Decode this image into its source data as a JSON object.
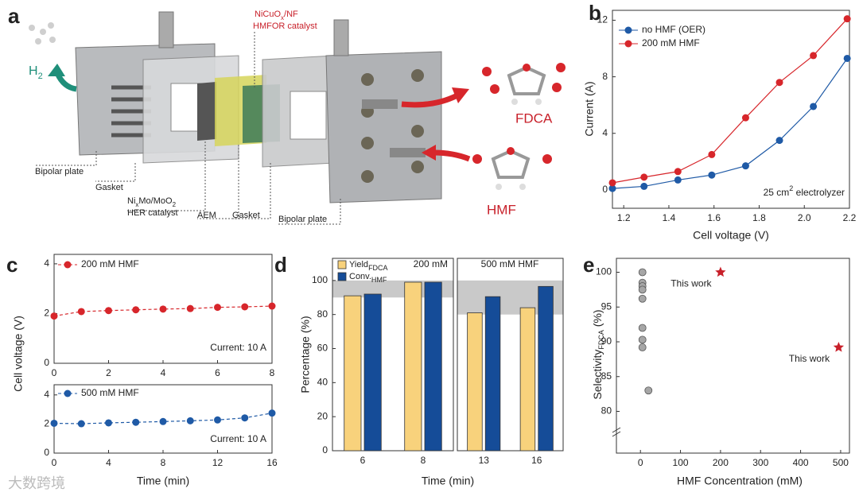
{
  "diagram": {
    "panel": "a",
    "h2": [
      {
        "text": "H"
      },
      {
        "text": "2",
        "sub": true
      }
    ],
    "anode_catalyst": {
      "line1": [
        {
          "text": "NiCuO"
        },
        {
          "text": "x",
          "sub": true
        },
        {
          "text": "/NF"
        }
      ],
      "line2": "HMFOR catalyst"
    },
    "her_catalyst": {
      "line1": [
        {
          "text": "Ni"
        },
        {
          "text": "x",
          "sub": true
        },
        {
          "text": "Mo/MoO"
        },
        {
          "text": "2",
          "sub": true
        }
      ],
      "line2": "HER catalyst"
    },
    "bipolar_plate_left": "Bipolar plate",
    "gasket_left": "Gasket",
    "aem": "AEM",
    "gasket_right": "Gasket",
    "bipolar_plate_right": "Bipolar plate",
    "product": "FDCA",
    "reactant": "HMF"
  },
  "watermark": "大数跨境",
  "chart_data": [
    {
      "type": "line",
      "panel": "b",
      "xlabel": "Cell voltage (V)",
      "ylabel": "Current (A)",
      "annotation": [
        {
          "text": "25 cm"
        },
        {
          "text": "2",
          "sup": true
        },
        {
          "text": " electrolyzer"
        }
      ],
      "xlim": [
        1.15,
        2.2
      ],
      "xticks": [
        1.2,
        1.4,
        1.6,
        1.8,
        {
          "value": 2,
          "label": "2.0"
        },
        2.2
      ],
      "ylim": [
        -1.3,
        12.7
      ],
      "yticks": [
        0,
        4,
        8,
        12
      ],
      "x": [
        1.15,
        1.29,
        1.44,
        1.59,
        1.74,
        1.89,
        2.04,
        2.19
      ],
      "series": [
        {
          "name": "no HMF (OER)",
          "color": "#1f5aa6",
          "values": [
            0.1,
            0.25,
            0.7,
            1.05,
            1.7,
            3.5,
            5.9,
            9.3
          ]
        },
        {
          "name": "200 mM HMF",
          "color": "#d7262b",
          "values": [
            0.5,
            0.9,
            1.3,
            2.5,
            5.1,
            7.6,
            9.5,
            12.1
          ]
        }
      ]
    },
    {
      "type": "line",
      "panel": "c",
      "ylabel": "Cell voltage (V)",
      "annotation": "Current: 10 A",
      "dashed": true,
      "xlim": [
        0,
        8
      ],
      "xticks": [
        0,
        2,
        4,
        6,
        8
      ],
      "ylim": [
        0,
        4.38
      ],
      "yticks": [
        0,
        2,
        4
      ],
      "x": [
        0,
        1,
        2,
        3,
        4,
        5,
        6,
        7,
        8
      ],
      "series": [
        {
          "name": "200 mM HMF",
          "color": "#d7262b",
          "values": [
            1.9,
            2.08,
            2.12,
            2.15,
            2.18,
            2.2,
            2.25,
            2.27,
            2.3
          ]
        }
      ]
    },
    {
      "type": "line",
      "xlabel": "Time (min)",
      "annotation": "Current: 10 A",
      "dashed": true,
      "xlim": [
        0,
        16
      ],
      "xticks": [
        0,
        4,
        8,
        12,
        16
      ],
      "ylim": [
        0,
        4.7
      ],
      "yticks": [
        0,
        2,
        4
      ],
      "x": [
        0,
        2,
        4,
        6,
        8,
        10,
        12,
        14,
        16
      ],
      "series": [
        {
          "name": "500 mM HMF",
          "color": "#1f5aa6",
          "values": [
            2.05,
            2.02,
            2.08,
            2.12,
            2.17,
            2.22,
            2.28,
            2.42,
            2.75
          ]
        }
      ]
    },
    {
      "type": "bar",
      "panel": "d",
      "xlabel": "Time (min)",
      "ylabel": "Percentage (%)",
      "label": "200 mM",
      "ylim": [
        0,
        113
      ],
      "yticks": [
        0,
        20,
        40,
        60,
        80,
        100
      ],
      "band": [
        90,
        100
      ],
      "categories": [
        "6",
        "8"
      ],
      "series": [
        {
          "name": [
            {
              "text": "Yield"
            },
            {
              "text": "FDCA",
              "sub": true
            }
          ],
          "color": "#f8d27c",
          "values": [
            91,
            99
          ]
        },
        {
          "name": [
            {
              "text": "Conv."
            },
            {
              "text": "HMF",
              "sub": true
            }
          ],
          "color": "#154c98",
          "values": [
            92,
            99
          ]
        }
      ]
    },
    {
      "type": "bar",
      "label": "500 mM HMF",
      "ylim": [
        0,
        113
      ],
      "band": [
        80,
        100
      ],
      "categories": [
        "13",
        "16"
      ],
      "series": [
        {
          "color": "#f8d27c",
          "values": [
            81,
            84
          ]
        },
        {
          "color": "#154c98",
          "values": [
            90.5,
            96.5
          ]
        }
      ]
    },
    {
      "type": "scatter",
      "panel": "e",
      "xlabel": "HMF Concentration (mM)",
      "ylabel": [
        {
          "text": "Selectivity"
        },
        {
          "text": "FDCA",
          "sub": true
        },
        {
          "text": " (%)"
        }
      ],
      "xlim": [
        -60,
        522
      ],
      "xticks": [
        0,
        100,
        200,
        300,
        400,
        500
      ],
      "ylim": [
        74,
        102
      ],
      "yticks": [
        80,
        85,
        90,
        95,
        100
      ],
      "series": [
        {
          "color": "#a6a6a6",
          "x": [
            5,
            5,
            5,
            5,
            5,
            5,
            5,
            5,
            20
          ],
          "values": [
            100,
            98.5,
            98,
            97.5,
            96.2,
            92,
            90.3,
            89.2,
            83
          ]
        },
        {
          "color": "#c8202a",
          "marker": "star",
          "x": [
            200,
            495
          ],
          "values": [
            100,
            89.2
          ],
          "labels": [
            "This work",
            "This work"
          ]
        }
      ]
    }
  ]
}
